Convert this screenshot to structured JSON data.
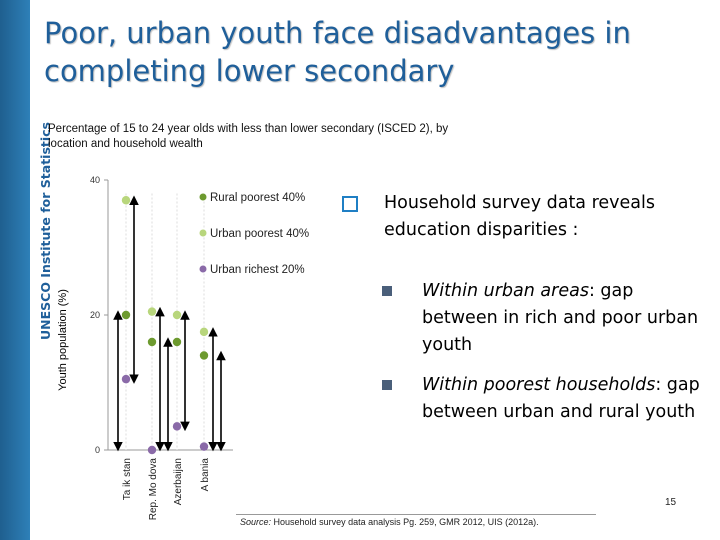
{
  "slide": {
    "title": "Poor, urban youth face disadvantages in completing lower secondary",
    "side_label": "UNESCO Institute for Statistics",
    "subtitle": "Percentage of 15 to 24 year olds with less than lower secondary (ISCED 2), by location and household wealth",
    "page_number": "15",
    "source_prefix": "Source:",
    "source_text": " Household survey data analysis Pg. 259, GMR 2012, UIS (2012a)."
  },
  "bullets": {
    "main": "Household survey data reveals education disparities :",
    "sub1_italic": "Within urban areas",
    "sub1_rest": ": gap between in rich and poor urban youth",
    "sub2_italic": "Within poorest households",
    "sub2_rest": ": gap between urban and rural youth"
  },
  "colors": {
    "accent_blue": "#1f5f9a",
    "rural": "#6d9a2f",
    "urban_poor": "#b8d67c",
    "urban_rich": "#8a6aa8"
  },
  "chart_data": {
    "type": "scatter",
    "title": "",
    "xlabel": "",
    "ylabel": "Youth population (%)",
    "ylim": [
      0,
      40
    ],
    "yticks": [
      0,
      20,
      40
    ],
    "ytick_labels": [
      "0",
      "20",
      "40"
    ],
    "categories": [
      "Tajikistan",
      "Rep. Moldova",
      "Azerbaijan",
      "Albania"
    ],
    "category_labels": [
      "Ta ik stan",
      "Rep. Mo dova",
      "Azerbaijan",
      "A bania"
    ],
    "series": [
      {
        "name": "Rural poorest 40%",
        "values": [
          20,
          16,
          16,
          14
        ]
      },
      {
        "name": "Urban poorest 40%",
        "values": [
          37,
          20.5,
          20,
          17.5
        ]
      },
      {
        "name": "Urban richest 20%",
        "values": [
          10.5,
          0,
          3.5,
          0.5
        ]
      }
    ],
    "legend": [
      "Rural poorest 40%",
      "Urban poorest 40%",
      "Urban richest 20%"
    ],
    "legend_position": "top-right"
  }
}
